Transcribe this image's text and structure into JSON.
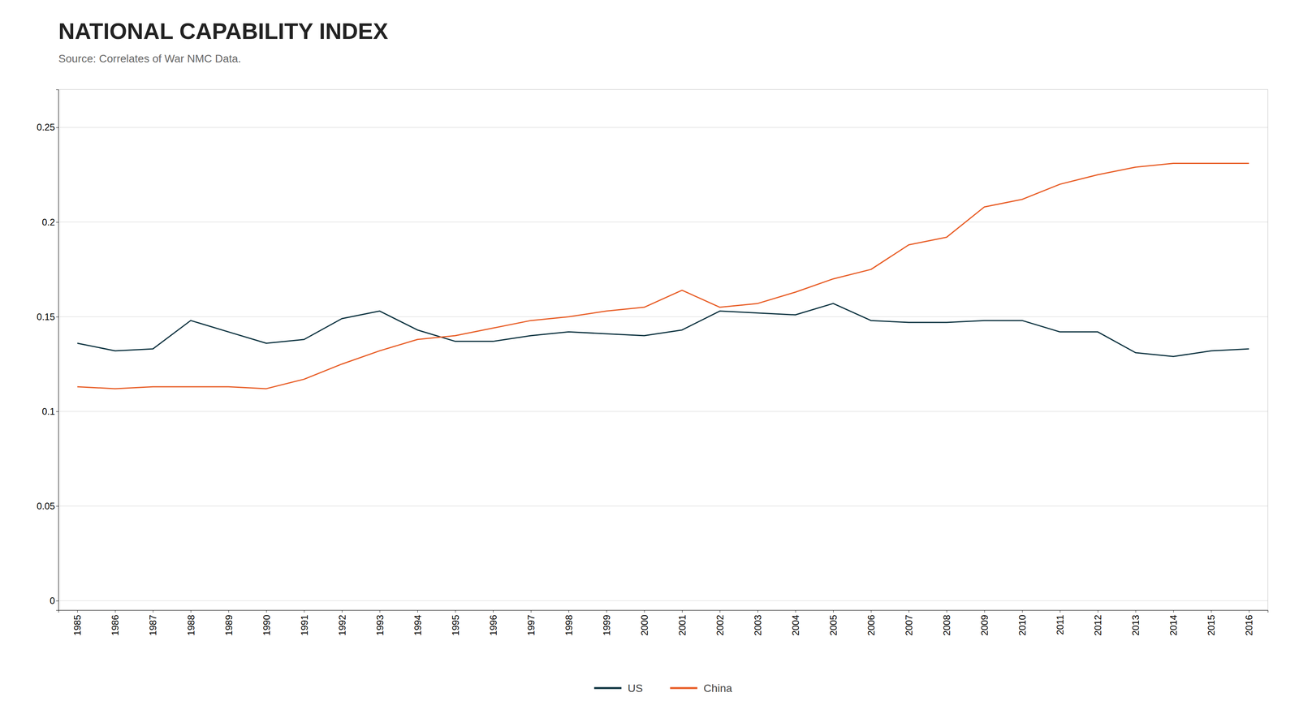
{
  "chart_data": {
    "type": "line",
    "title": "NATIONAL CAPABILITY INDEX",
    "subtitle": "Source: Correlates of War NMC Data.",
    "x": [
      1985,
      1986,
      1987,
      1988,
      1989,
      1990,
      1991,
      1992,
      1993,
      1994,
      1995,
      1996,
      1997,
      1998,
      1999,
      2000,
      2001,
      2002,
      2003,
      2004,
      2005,
      2006,
      2007,
      2008,
      2009,
      2010,
      2011,
      2012,
      2013,
      2014,
      2015,
      2016
    ],
    "series": [
      {
        "name": "US",
        "color": "#0d3340",
        "values": [
          0.136,
          0.132,
          0.133,
          0.148,
          0.142,
          0.136,
          0.138,
          0.149,
          0.153,
          0.143,
          0.137,
          0.137,
          0.14,
          0.142,
          0.141,
          0.14,
          0.143,
          0.153,
          0.152,
          0.151,
          0.157,
          0.148,
          0.147,
          0.147,
          0.148,
          0.148,
          0.142,
          0.142,
          0.131,
          0.129,
          0.132,
          0.133
        ]
      },
      {
        "name": "China",
        "color": "#e85d26",
        "values": [
          0.113,
          0.112,
          0.113,
          0.113,
          0.113,
          0.112,
          0.117,
          0.125,
          0.132,
          0.138,
          0.14,
          0.144,
          0.148,
          0.15,
          0.153,
          0.155,
          0.164,
          0.155,
          0.157,
          0.163,
          0.17,
          0.175,
          0.188,
          0.192,
          0.208,
          0.212,
          0.22,
          0.225,
          0.229,
          0.231,
          0.231,
          0.231
        ]
      }
    ],
    "xlim": [
      1984.5,
      2016.5
    ],
    "xticks": [
      1985,
      1986,
      1987,
      1988,
      1989,
      1990,
      1991,
      1992,
      1993,
      1994,
      1995,
      1996,
      1997,
      1998,
      1999,
      2000,
      2001,
      2002,
      2003,
      2004,
      2005,
      2006,
      2007,
      2008,
      2009,
      2010,
      2011,
      2012,
      2013,
      2014,
      2015,
      2016
    ],
    "ylim": [
      -0.005,
      0.27
    ],
    "yticks": [
      0,
      0.05,
      0.1,
      0.15,
      0.2,
      0.25
    ],
    "grid": true,
    "legend": "bottom"
  }
}
